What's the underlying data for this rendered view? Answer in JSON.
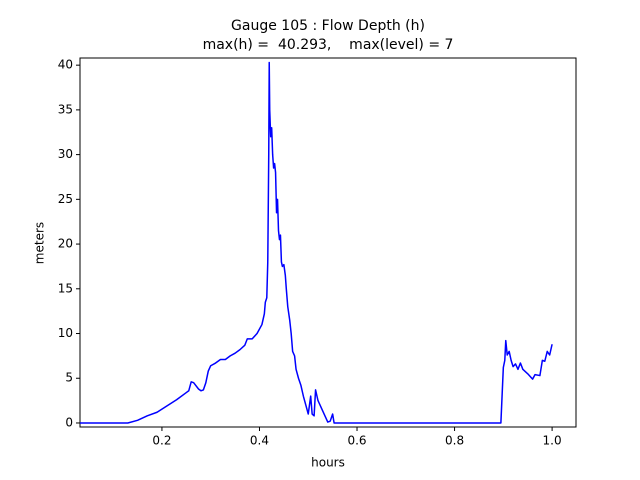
{
  "chart_data": {
    "type": "line",
    "title": "Gauge 105 : Flow Depth (h)",
    "subtitle": "max(h) =  40.293,    max(level) = 7",
    "xlabel": "hours",
    "ylabel": "meters",
    "color": "#0000ff",
    "xlim": [
      0.032,
      1.049
    ],
    "ylim": [
      -0.45,
      40.8
    ],
    "xticks": [
      0.2,
      0.4,
      0.6,
      0.8,
      {
        "value": 1,
        "label": "1.0"
      }
    ],
    "yticks": [
      0,
      5,
      10,
      15,
      20,
      25,
      30,
      35,
      40
    ],
    "x": [
      0.032,
      0.13,
      0.15,
      0.17,
      0.19,
      0.21,
      0.23,
      0.25,
      0.255,
      0.26,
      0.265,
      0.275,
      0.28,
      0.285,
      0.29,
      0.295,
      0.3,
      0.31,
      0.32,
      0.33,
      0.34,
      0.35,
      0.36,
      0.37,
      0.375,
      0.385,
      0.395,
      0.405,
      0.41,
      0.412,
      0.415,
      0.417,
      0.419,
      0.42,
      0.421,
      0.423,
      0.425,
      0.427,
      0.429,
      0.431,
      0.433,
      0.435,
      0.437,
      0.439,
      0.441,
      0.443,
      0.445,
      0.447,
      0.45,
      0.453,
      0.455,
      0.458,
      0.462,
      0.465,
      0.468,
      0.472,
      0.475,
      0.48,
      0.485,
      0.49,
      0.495,
      0.5,
      0.505,
      0.508,
      0.512,
      0.515,
      0.52,
      0.53,
      0.535,
      0.54,
      0.545,
      0.55,
      0.553,
      0.895,
      0.897,
      0.9,
      0.903,
      0.905,
      0.908,
      0.912,
      0.916,
      0.92,
      0.925,
      0.93,
      0.935,
      0.94,
      0.95,
      0.96,
      0.965,
      0.975,
      0.98,
      0.985,
      0.99,
      0.995,
      1.0
    ],
    "values": [
      0,
      0,
      0.3,
      0.8,
      1.2,
      1.9,
      2.6,
      3.4,
      3.6,
      4.6,
      4.5,
      3.8,
      3.6,
      3.7,
      4.5,
      5.8,
      6.4,
      6.7,
      7.1,
      7.1,
      7.5,
      7.8,
      8.2,
      8.7,
      9.4,
      9.4,
      10.0,
      11.0,
      12.2,
      13.5,
      14.0,
      18,
      30,
      40.3,
      35,
      32,
      33,
      30,
      28.5,
      29,
      28,
      23.5,
      25,
      21.5,
      20.5,
      21,
      18,
      17.5,
      17.7,
      16.5,
      15,
      13,
      11.5,
      10,
      8,
      7.5,
      6,
      5,
      4.2,
      3,
      2,
      1,
      3,
      1,
      0.8,
      3.7,
      2.5,
      1.3,
      0.7,
      0.1,
      0.2,
      1,
      0,
      0,
      2.5,
      6.2,
      7,
      9.2,
      7.6,
      8.0,
      7,
      6.3,
      6.6,
      6.0,
      6.7,
      6.0,
      5.5,
      4.9,
      5.4,
      5.3,
      7.0,
      6.9,
      8.0,
      7.6,
      8.8
    ]
  }
}
